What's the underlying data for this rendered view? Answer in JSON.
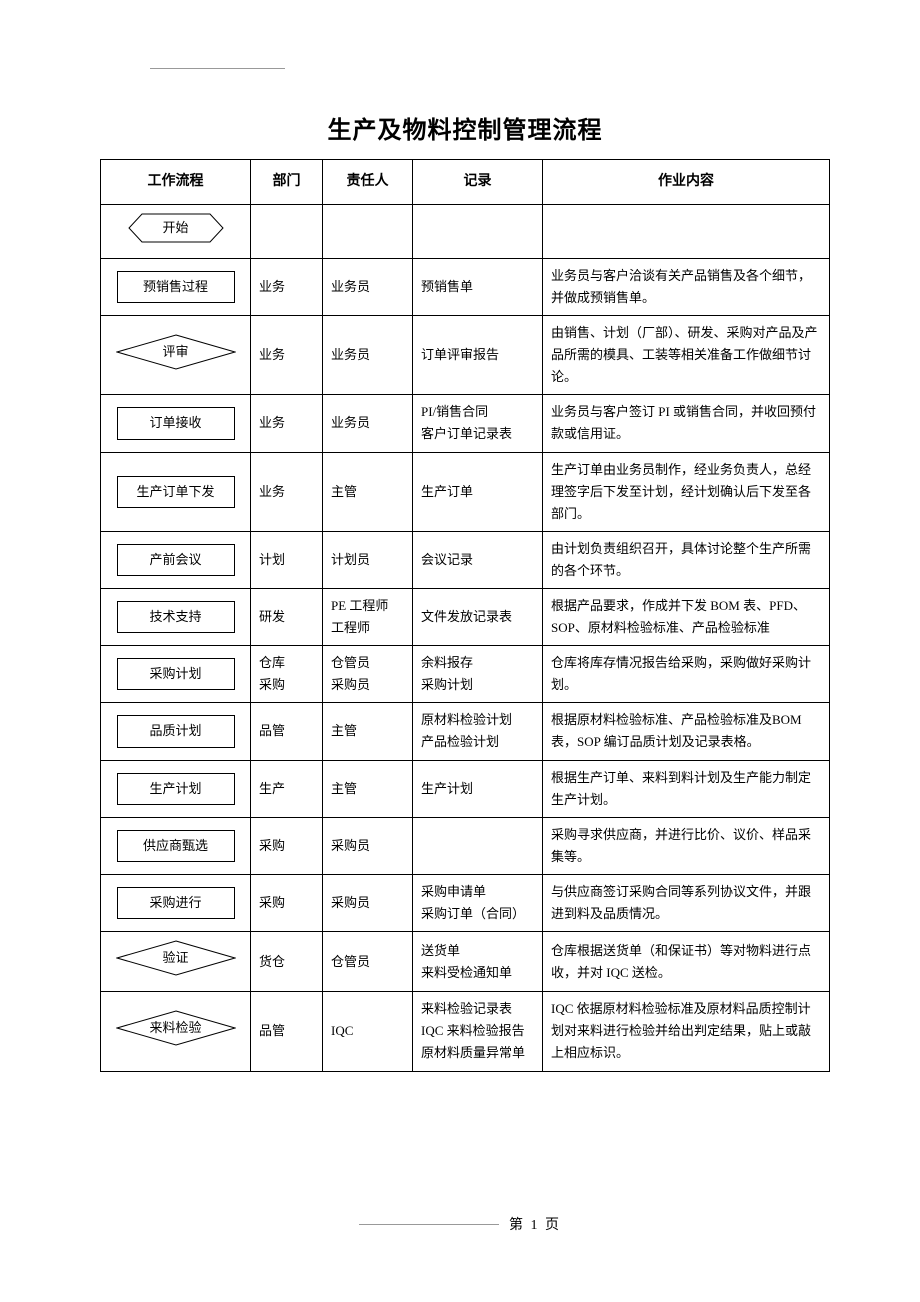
{
  "title": "生产及物料控制管理流程",
  "headers": {
    "flow": "工作流程",
    "dept": "部门",
    "resp": "责任人",
    "record": "记录",
    "desc": "作业内容"
  },
  "rows": [
    {
      "shape": "hex",
      "label": "开始",
      "dept": "",
      "resp": "",
      "record": "",
      "desc": ""
    },
    {
      "shape": "rect",
      "label": "预销售过程",
      "dept": "业务",
      "resp": "业务员",
      "record": "预销售单",
      "desc": "业务员与客户洽谈有关产品销售及各个细节，并做成预销售单。"
    },
    {
      "shape": "diamond",
      "label": "评审",
      "dept": "业务",
      "resp": "业务员",
      "record": "订单评审报告",
      "desc": "由销售、计划（厂部）、研发、采购对产品及产品所需的模具、工装等相关准备工作做细节讨论。"
    },
    {
      "shape": "rect",
      "label": "订单接收",
      "dept": "业务",
      "resp": "业务员",
      "record": "PI/销售合同\n客户订单记录表",
      "desc": "业务员与客户签订 PI 或销售合同，并收回预付款或信用证。"
    },
    {
      "shape": "rect",
      "label": "生产订单下发",
      "dept": "业务",
      "resp": "主管",
      "record": "生产订单",
      "desc": "生产订单由业务员制作，经业务负责人，总经理签字后下发至计划，经计划确认后下发至各部门。"
    },
    {
      "shape": "rect",
      "label": "产前会议",
      "dept": "计划",
      "resp": "计划员",
      "record": "会议记录",
      "desc": "由计划负责组织召开，具体讨论整个生产所需的各个环节。"
    },
    {
      "shape": "rect",
      "label": "技术支持",
      "dept": "研发",
      "resp": "PE 工程师\n工程师",
      "record": "文件发放记录表",
      "desc": "根据产品要求，作成并下发 BOM 表、PFD、SOP、原材料检验标准、产品检验标准"
    },
    {
      "shape": "rect",
      "label": "采购计划",
      "dept": "仓库\n采购",
      "resp": "仓管员\n采购员",
      "record": "余料报存\n采购计划",
      "desc": "仓库将库存情况报告给采购，采购做好采购计划。"
    },
    {
      "shape": "rect",
      "label": "品质计划",
      "dept": "品管",
      "resp": "主管",
      "record": "原材料检验计划\n产品检验计划",
      "desc": "根据原材料检验标准、产品检验标准及BOM 表，SOP 编订品质计划及记录表格。"
    },
    {
      "shape": "rect",
      "label": "生产计划",
      "dept": "生产",
      "resp": "主管",
      "record": "生产计划",
      "desc": "根据生产订单、来料到料计划及生产能力制定生产计划。"
    },
    {
      "shape": "rect",
      "label": "供应商甄选",
      "dept": "采购",
      "resp": "采购员",
      "record": "",
      "desc": "采购寻求供应商，并进行比价、议价、样品采集等。"
    },
    {
      "shape": "rect",
      "label": "采购进行",
      "dept": "采购",
      "resp": "采购员",
      "record": "采购申请单\n采购订单（合同）",
      "desc": "与供应商签订采购合同等系列协议文件，并跟进到料及品质情况。"
    },
    {
      "shape": "diamond",
      "label": "验证",
      "dept": "货仓",
      "resp": "仓管员",
      "record": "送货单\n来料受检通知单",
      "desc": "仓库根据送货单（和保证书）等对物料进行点收，并对 IQC 送检。"
    },
    {
      "shape": "diamond",
      "label": "来料检验",
      "dept": "品管",
      "resp": "IQC",
      "record": "来料检验记录表\nIQC 来料检验报告\n原材料质量异常单",
      "desc": "IQC 依据原材料检验标准及原材料品质控制计划对来料进行检验并给出判定结果，贴上或敲上相应标识。"
    }
  ],
  "footer": {
    "page_label": "第 1 页"
  },
  "colors": {
    "text": "#000000",
    "border": "#000000",
    "rule": "#999999",
    "background": "#ffffff"
  }
}
